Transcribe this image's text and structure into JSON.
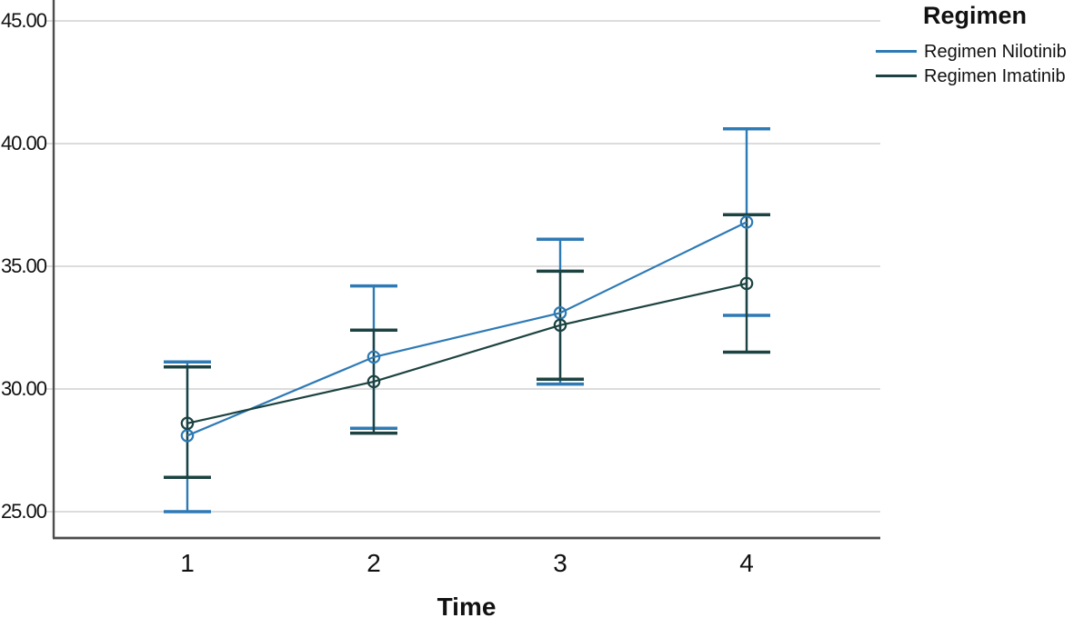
{
  "chart_data": {
    "type": "line",
    "title": "",
    "xlabel": "Time",
    "ylabel": "",
    "grid": true,
    "legend_title": "Regimen",
    "legend_position": "top-right-outside",
    "x": [
      1,
      2,
      3,
      4
    ],
    "xtick_labels": [
      "1",
      "2",
      "3",
      "4"
    ],
    "ytick_labels": [
      "25.00",
      "30.00",
      "35.00",
      "40.00",
      "45.00"
    ],
    "ytick_values": [
      25,
      30,
      35,
      40,
      45
    ],
    "ylim_visible": [
      25,
      45
    ],
    "marker": "open-circle",
    "error_bars": true,
    "series": [
      {
        "name": "Regimen Nilotinib",
        "color": "#2e7ab5",
        "means": [
          28.1,
          31.3,
          33.1,
          36.8
        ],
        "ci_low": [
          25.0,
          28.4,
          30.2,
          33.0
        ],
        "ci_high": [
          31.1,
          34.2,
          36.1,
          40.6
        ]
      },
      {
        "name": "Regimen Imatinib",
        "color": "#1c4341",
        "means": [
          28.6,
          30.3,
          32.6,
          34.3
        ],
        "ci_low": [
          26.4,
          28.2,
          30.4,
          31.5
        ],
        "ci_high": [
          30.9,
          32.4,
          34.8,
          37.1
        ]
      }
    ],
    "colors": {
      "grid": "#c7c7c7",
      "axis": "#4d4d4d",
      "text": "#111111",
      "background": "#ffffff"
    }
  }
}
